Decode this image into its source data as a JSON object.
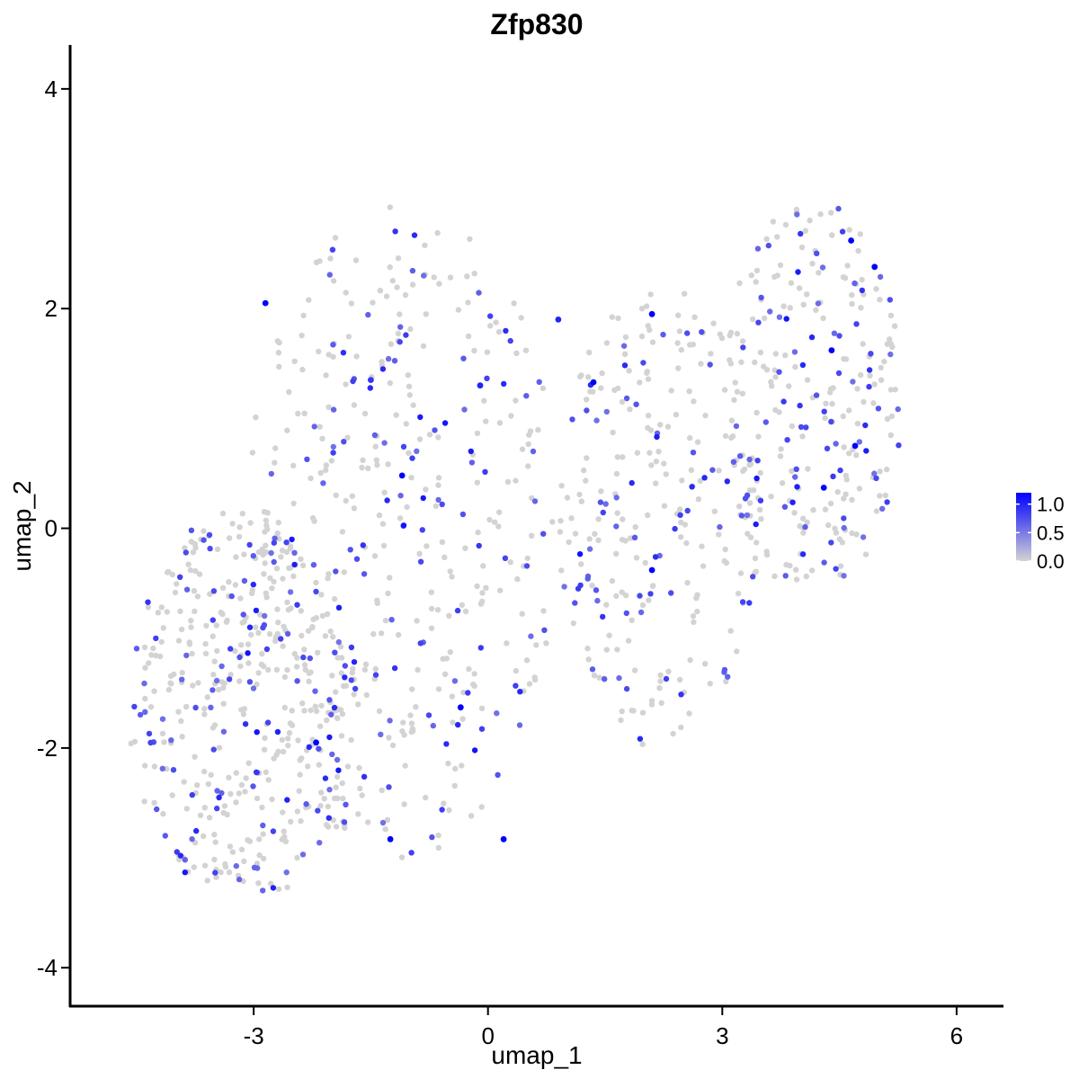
{
  "chart_data": {
    "type": "scatter",
    "title": "Zfp830",
    "xlabel": "umap_1",
    "ylabel": "umap_2",
    "xlim": [
      -5.35,
      6.6
    ],
    "ylim": [
      -4.35,
      4.4
    ],
    "xticks": [
      -3,
      0,
      3,
      6
    ],
    "xtick_labels": [
      "-3",
      "0",
      "3",
      "6"
    ],
    "yticks": [
      -4,
      -2,
      0,
      2,
      4
    ],
    "ytick_labels": [
      "-4",
      "-2",
      "0",
      "2",
      "4"
    ],
    "grid": false,
    "legend": {
      "placement": "right",
      "type": "colorbar",
      "range": [
        0,
        1.2
      ],
      "ticks": [
        0.0,
        0.5,
        1.0
      ],
      "tick_labels": [
        "0.0",
        "0.5",
        "1.0"
      ],
      "low_color": "#d3d3d3",
      "high_color": "#0000ff"
    },
    "color_scale": {
      "low": "#d3d3d3",
      "high": "#0000ff"
    },
    "clusters_sampled": [
      {
        "x_range": [
          -4.6,
          -1.6
        ],
        "y_range": [
          -3.4,
          0.2
        ],
        "density": "high"
      },
      {
        "x_range": [
          -3.1,
          0.9
        ],
        "y_range": [
          -3.0,
          3.0
        ],
        "density": "high"
      },
      {
        "x_range": [
          0.9,
          3.5
        ],
        "y_range": [
          -2.0,
          2.2
        ],
        "density": "medium"
      },
      {
        "x_range": [
          3.0,
          5.3
        ],
        "y_range": [
          -0.6,
          3.0
        ],
        "density": "medium"
      }
    ],
    "highlighted_points": [
      {
        "x": -2.85,
        "y": 2.05,
        "value": 1.2
      },
      {
        "x": -1.1,
        "y": 0.48,
        "value": 1.2
      },
      {
        "x": 1.35,
        "y": 1.33,
        "value": 1.2
      },
      {
        "x": 2.1,
        "y": 1.95,
        "value": 1.2
      },
      {
        "x": 2.1,
        "y": -0.38,
        "value": 1.2
      },
      {
        "x": -0.35,
        "y": -1.63,
        "value": 1.2
      },
      {
        "x": -2.2,
        "y": -1.95,
        "value": 1.2
      },
      {
        "x": -1.25,
        "y": -2.83,
        "value": 1.2
      },
      {
        "x": 0.2,
        "y": -2.83,
        "value": 1.2
      },
      {
        "x": 4.65,
        "y": 2.62,
        "value": 1.2
      },
      {
        "x": 4.95,
        "y": 2.38,
        "value": 1.2
      },
      {
        "x": 4.4,
        "y": 1.62,
        "value": 1.2
      },
      {
        "x": 4.7,
        "y": 0.75,
        "value": 1.2
      },
      {
        "x": 4.3,
        "y": 0.37,
        "value": 1.2
      },
      {
        "x": -0.1,
        "y": 1.3,
        "value": 1.0
      },
      {
        "x": 0.9,
        "y": 1.9,
        "value": 1.0
      },
      {
        "x": -1.5,
        "y": 1.35,
        "value": 0.9
      }
    ]
  }
}
